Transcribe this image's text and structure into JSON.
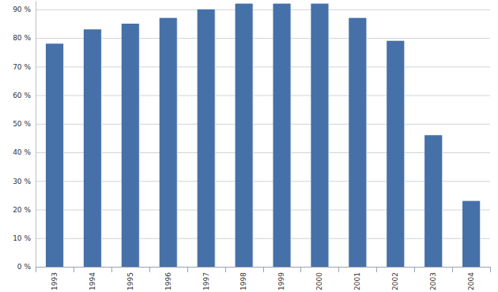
{
  "chart_data": {
    "type": "bar",
    "categories": [
      "1993",
      "1994",
      "1995",
      "1996",
      "1997",
      "1998",
      "1999",
      "2000",
      "2001",
      "2002",
      "2003",
      "2004"
    ],
    "values": [
      78,
      83,
      85,
      87,
      90,
      92,
      92,
      92,
      87,
      79,
      46,
      23
    ],
    "color": "#4670a8",
    "ylim": [
      0,
      93
    ],
    "yticks": [
      {
        "value": 0,
        "label": "0 %"
      },
      {
        "value": 10,
        "label": "10 %"
      },
      {
        "value": 20,
        "label": "20 %"
      },
      {
        "value": 30,
        "label": "30 %"
      },
      {
        "value": 40,
        "label": "40 %"
      },
      {
        "value": 50,
        "label": "50 %"
      },
      {
        "value": 60,
        "label": "60 %"
      },
      {
        "value": 70,
        "label": "70 %"
      },
      {
        "value": 80,
        "label": "80 %"
      },
      {
        "value": 90,
        "label": "90 %"
      }
    ],
    "grid": true
  }
}
